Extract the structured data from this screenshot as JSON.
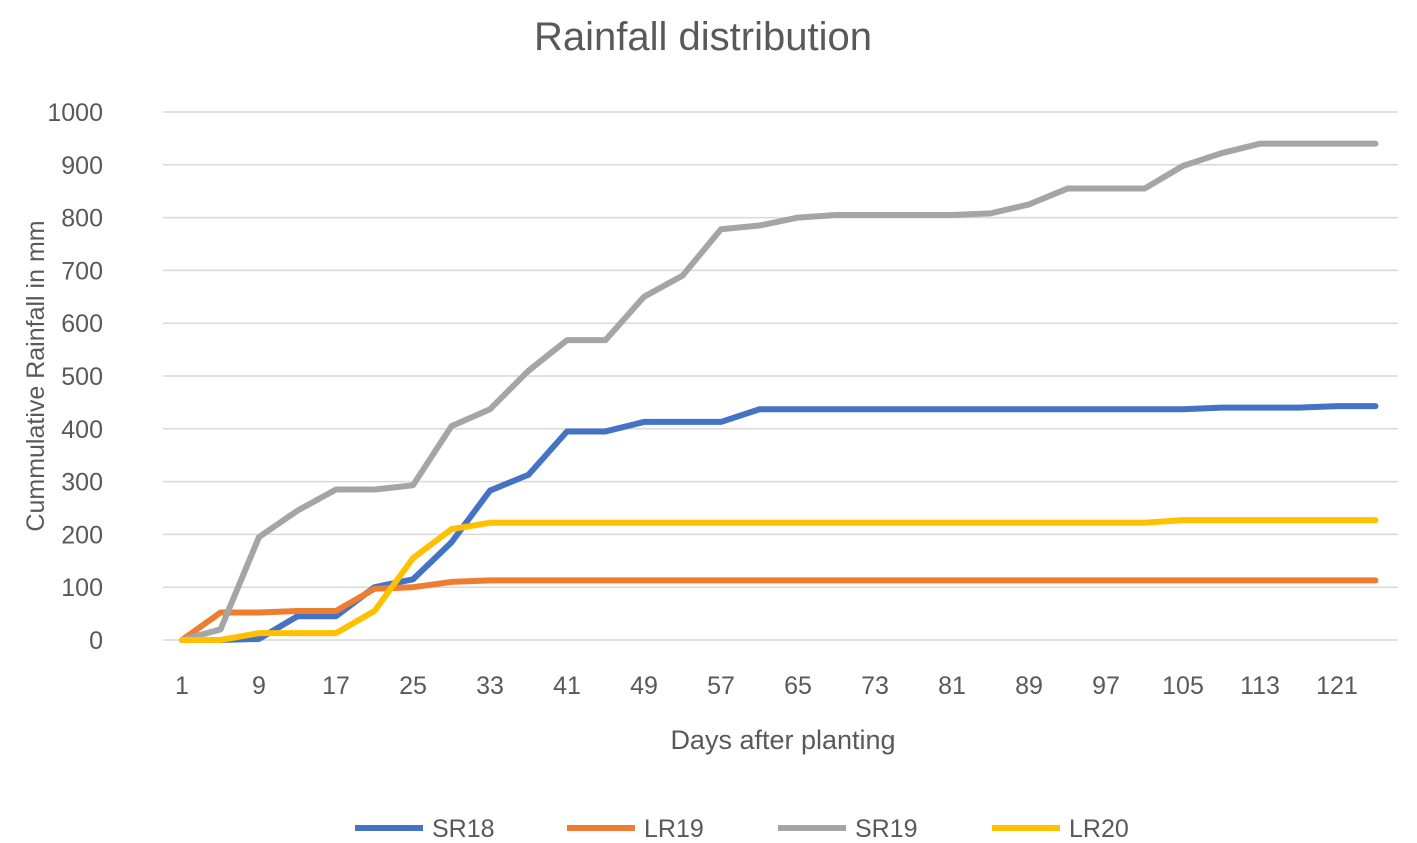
{
  "chart_data": {
    "type": "line",
    "title": "Rainfall distribution",
    "xlabel": "Days after planting",
    "ylabel": "Cummulative Rainfall in mm",
    "ylim": [
      0,
      1000
    ],
    "yticks": [
      0,
      100,
      200,
      300,
      400,
      500,
      600,
      700,
      800,
      900,
      1000
    ],
    "x": [
      1,
      5,
      9,
      13,
      17,
      21,
      25,
      29,
      33,
      37,
      41,
      45,
      49,
      53,
      57,
      61,
      65,
      69,
      73,
      77,
      81,
      85,
      89,
      93,
      97,
      101,
      105,
      109,
      113,
      117,
      121,
      125
    ],
    "xtick_labels": [
      "1",
      "9",
      "17",
      "25",
      "33",
      "41",
      "49",
      "57",
      "65",
      "73",
      "81",
      "89",
      "97",
      "105",
      "113",
      "121"
    ],
    "grid": true,
    "legend_position": "bottom",
    "series": [
      {
        "name": "SR18",
        "color": "#4472C4",
        "values": [
          0,
          0,
          2,
          45,
          45,
          100,
          115,
          185,
          283,
          313,
          395,
          395,
          413,
          413,
          413,
          437,
          437,
          437,
          437,
          437,
          437,
          437,
          437,
          437,
          437,
          437,
          437,
          440,
          440,
          440,
          443,
          443
        ]
      },
      {
        "name": "LR19",
        "color": "#ED7D31",
        "values": [
          0,
          52,
          52,
          55,
          55,
          97,
          100,
          110,
          113,
          113,
          113,
          113,
          113,
          113,
          113,
          113,
          113,
          113,
          113,
          113,
          113,
          113,
          113,
          113,
          113,
          113,
          113,
          113,
          113,
          113,
          113,
          113
        ]
      },
      {
        "name": "SR19",
        "color": "#A5A5A5",
        "values": [
          0,
          20,
          195,
          245,
          285,
          285,
          293,
          405,
          437,
          510,
          568,
          568,
          650,
          690,
          778,
          785,
          800,
          805,
          805,
          805,
          805,
          808,
          825,
          855,
          855,
          855,
          898,
          922,
          940,
          940,
          940,
          940
        ]
      },
      {
        "name": "LR20",
        "color": "#FFC000",
        "values": [
          0,
          0,
          13,
          13,
          13,
          55,
          155,
          210,
          222,
          222,
          222,
          222,
          222,
          222,
          222,
          222,
          222,
          222,
          222,
          222,
          222,
          222,
          222,
          222,
          222,
          222,
          227,
          227,
          227,
          227,
          227,
          227
        ]
      }
    ]
  }
}
